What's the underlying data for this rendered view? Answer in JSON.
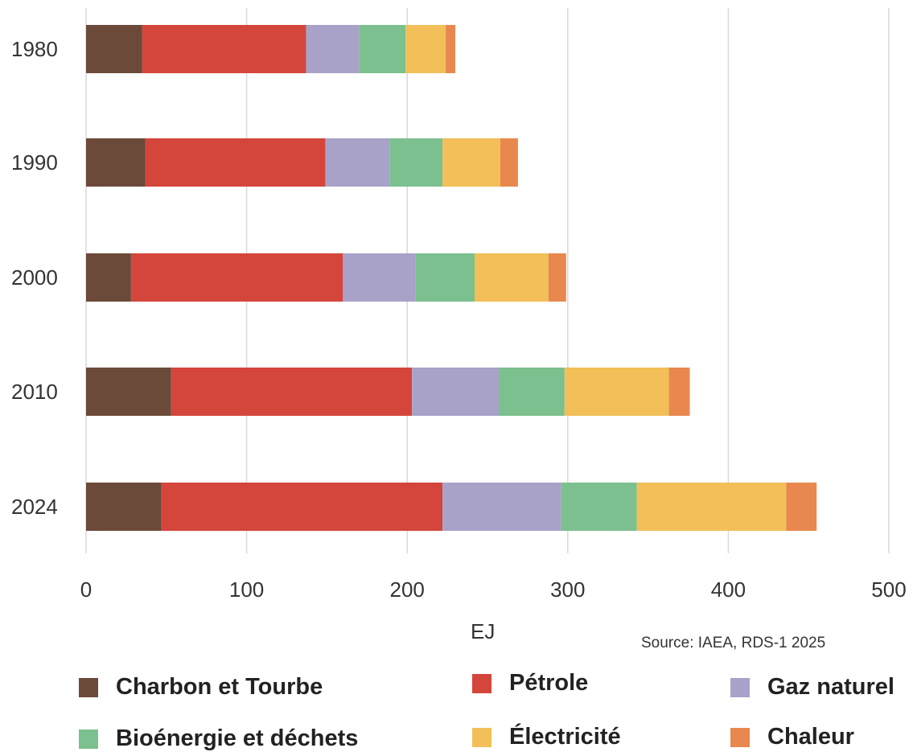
{
  "chart_data": {
    "type": "bar",
    "orientation": "horizontal",
    "stacked": true,
    "categories": [
      "1980",
      "1990",
      "2000",
      "2010",
      "2024"
    ],
    "series": [
      {
        "name": "Charbon et Tourbe",
        "color": "#6b4a3a",
        "values": [
          35,
          37,
          28,
          53,
          47
        ]
      },
      {
        "name": "Pétrole",
        "color": "#d4463b",
        "values": [
          102,
          112,
          132,
          150,
          175
        ]
      },
      {
        "name": "Gaz naturel",
        "color": "#a8a2c8",
        "values": [
          33,
          40,
          45,
          54,
          74
        ]
      },
      {
        "name": "Bioénergie et déchets",
        "color": "#7cc08f",
        "values": [
          29,
          33,
          37,
          41,
          47
        ]
      },
      {
        "name": "Électricité",
        "color": "#f2bf58",
        "values": [
          25,
          36,
          46,
          65,
          93
        ]
      },
      {
        "name": "Chaleur",
        "color": "#e8884f",
        "values": [
          6,
          11,
          11,
          13,
          19
        ]
      }
    ],
    "xlabel": "EJ",
    "xlim": [
      0,
      500
    ],
    "xticks": [
      "0",
      "100",
      "200",
      "300",
      "400",
      "500"
    ],
    "grid": "vertical",
    "legend_position": "bottom",
    "source": "Source: IAEA, RDS-1 2025"
  }
}
